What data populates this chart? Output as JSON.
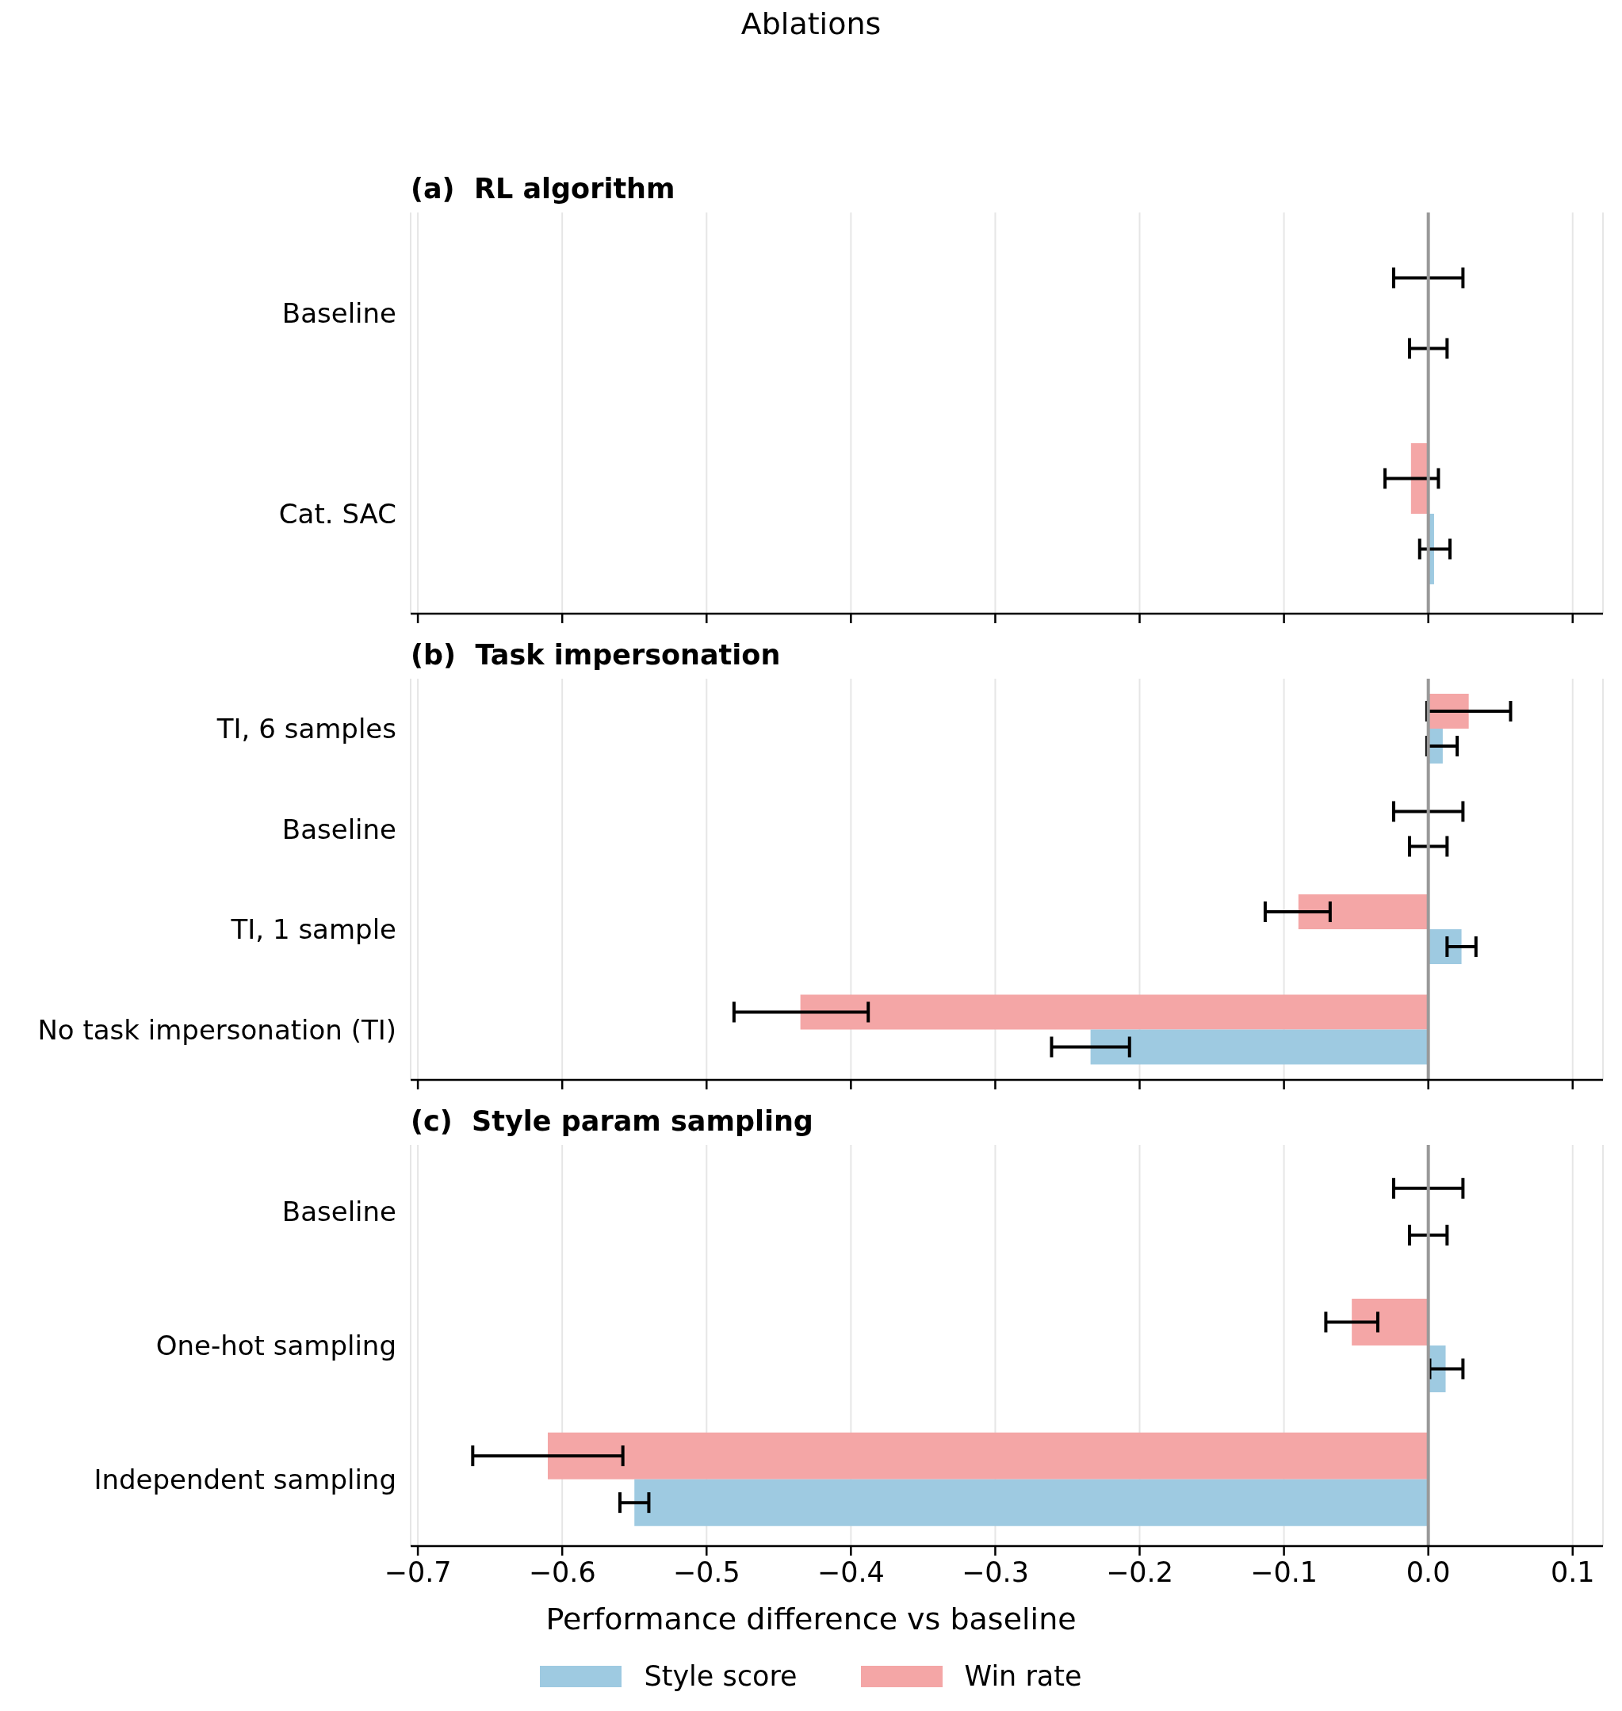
{
  "chart_data": [
    {
      "type": "bar",
      "orientation": "horizontal",
      "title": "Ablations",
      "subtitle": "(a)  RL algorithm",
      "categories": [
        "Baseline",
        "Cat. SAC"
      ],
      "series": [
        {
          "color": "#9ecae1",
          "values": [
            0,
            0.004
          ],
          "errors": [
            [
              -0.013,
              0.013
            ],
            [
              -0.006,
              0.015
            ]
          ]
        },
        {
          "color": "#f4a6a6",
          "values": [
            0,
            -0.012
          ],
          "errors": [
            [
              -0.024,
              0.024
            ],
            [
              -0.03,
              0.007
            ]
          ]
        }
      ],
      "xlim": [
        -0.705,
        0.121
      ],
      "xticks": [
        {
          "value": -0.7,
          "label": null
        },
        {
          "value": -0.6,
          "label": null
        },
        {
          "value": -0.5,
          "label": null
        },
        {
          "value": -0.4,
          "label": null
        },
        {
          "value": -0.3,
          "label": null
        },
        {
          "value": -0.2,
          "label": null
        },
        {
          "value": -0.1,
          "label": null
        },
        {
          "value": 0,
          "label": null
        },
        {
          "value": 0.1,
          "label": null
        }
      ],
      "ref_lines": [
        {
          "axis": "x",
          "value": 0,
          "color": "#999999"
        }
      ],
      "grid": "x",
      "tick_labels": "y"
    },
    {
      "type": "bar",
      "orientation": "horizontal",
      "subtitle": "(b)  Task impersonation",
      "categories": [
        "TI, 6 samples",
        "Baseline",
        "TI, 1 sample",
        "No task impersonation (TI)"
      ],
      "series": [
        {
          "color": "#9ecae1",
          "values": [
            0.01,
            0,
            0.023,
            -0.234
          ],
          "errors": [
            [
              -0.001,
              0.02
            ],
            [
              -0.013,
              0.013
            ],
            [
              0.013,
              0.033
            ],
            [
              -0.261,
              -0.207
            ]
          ]
        },
        {
          "color": "#f4a6a6",
          "values": [
            0.028,
            0,
            -0.09,
            -0.435
          ],
          "errors": [
            [
              -0.001,
              0.057
            ],
            [
              -0.024,
              0.024
            ],
            [
              -0.113,
              -0.068
            ],
            [
              -0.481,
              -0.388
            ]
          ]
        }
      ],
      "xlim": [
        -0.705,
        0.121
      ],
      "xticks": [
        {
          "value": -0.7,
          "label": null
        },
        {
          "value": -0.6,
          "label": null
        },
        {
          "value": -0.5,
          "label": null
        },
        {
          "value": -0.4,
          "label": null
        },
        {
          "value": -0.3,
          "label": null
        },
        {
          "value": -0.2,
          "label": null
        },
        {
          "value": -0.1,
          "label": null
        },
        {
          "value": 0,
          "label": null
        },
        {
          "value": 0.1,
          "label": null
        }
      ],
      "ref_lines": [
        {
          "axis": "x",
          "value": 0,
          "color": "#999999"
        }
      ],
      "grid": "x",
      "tick_labels": "y"
    },
    {
      "type": "bar",
      "orientation": "horizontal",
      "subtitle": "(c)  Style param sampling",
      "xlabel": "Performance difference vs baseline",
      "categories": [
        "Baseline",
        "One-hot sampling",
        "Independent sampling"
      ],
      "series": [
        {
          "name": "Style score",
          "color": "#9ecae1",
          "values": [
            0,
            0.012,
            -0.55
          ],
          "errors": [
            [
              -0.013,
              0.013
            ],
            [
              0.001,
              0.024
            ],
            [
              -0.56,
              -0.54
            ]
          ]
        },
        {
          "name": "Win rate",
          "color": "#f4a6a6",
          "values": [
            0,
            -0.053,
            -0.61
          ],
          "errors": [
            [
              -0.024,
              0.024
            ],
            [
              -0.071,
              -0.035
            ],
            [
              -0.662,
              -0.558
            ]
          ]
        }
      ],
      "xlim": [
        -0.705,
        0.121
      ],
      "xticks": [
        {
          "value": -0.7,
          "label": "−0.7"
        },
        {
          "value": -0.6,
          "label": "−0.6"
        },
        {
          "value": -0.5,
          "label": "−0.5"
        },
        {
          "value": -0.4,
          "label": "−0.4"
        },
        {
          "value": -0.3,
          "label": "−0.3"
        },
        {
          "value": -0.2,
          "label": "−0.2"
        },
        {
          "value": -0.1,
          "label": "−0.1"
        },
        {
          "value": 0,
          "label": "0.0"
        },
        0.1
      ],
      "ref_lines": [
        {
          "axis": "x",
          "value": 0,
          "color": "#999999"
        }
      ],
      "grid": "x",
      "legend": "bottom"
    }
  ]
}
